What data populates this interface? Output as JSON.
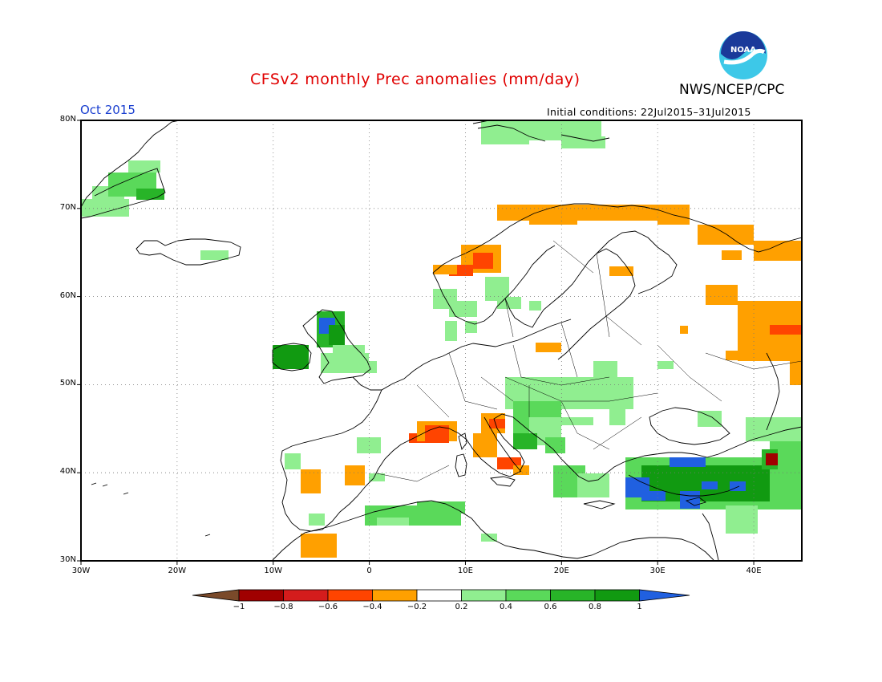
{
  "header": {
    "title": "CFSv2 monthly Prec anomalies (mm/day)",
    "agency": "NWS/NCEP/CPC",
    "month": "Oct 2015",
    "initial_conditions": "Initial conditions: 22Jul2015–31Jul2015",
    "logo_text": "NOAA",
    "logo_icon": "noaa-logo-icon"
  },
  "map": {
    "projection": "lat-lon",
    "lon_range": [
      -30,
      45
    ],
    "lat_range": [
      30,
      80
    ],
    "gridlines": "dotted",
    "lat_labels": [
      "80N",
      "70N",
      "60N",
      "50N",
      "40N",
      "30N"
    ],
    "lon_labels": [
      "30W",
      "20W",
      "10W",
      "0",
      "10E",
      "20E",
      "30E",
      "40E"
    ]
  },
  "colorbar": {
    "labels": [
      "−1",
      "−0.8",
      "−0.6",
      "−0.4",
      "−0.2",
      "0.2",
      "0.4",
      "0.6",
      "0.8",
      "1"
    ],
    "colors": [
      "#7a4a2a",
      "#a00000",
      "#d41c1c",
      "#ff4400",
      "#ffa000",
      "#ffffff",
      "#90ee90",
      "#5ad95a",
      "#28b428",
      "#119a11",
      "#2060e0"
    ]
  }
}
